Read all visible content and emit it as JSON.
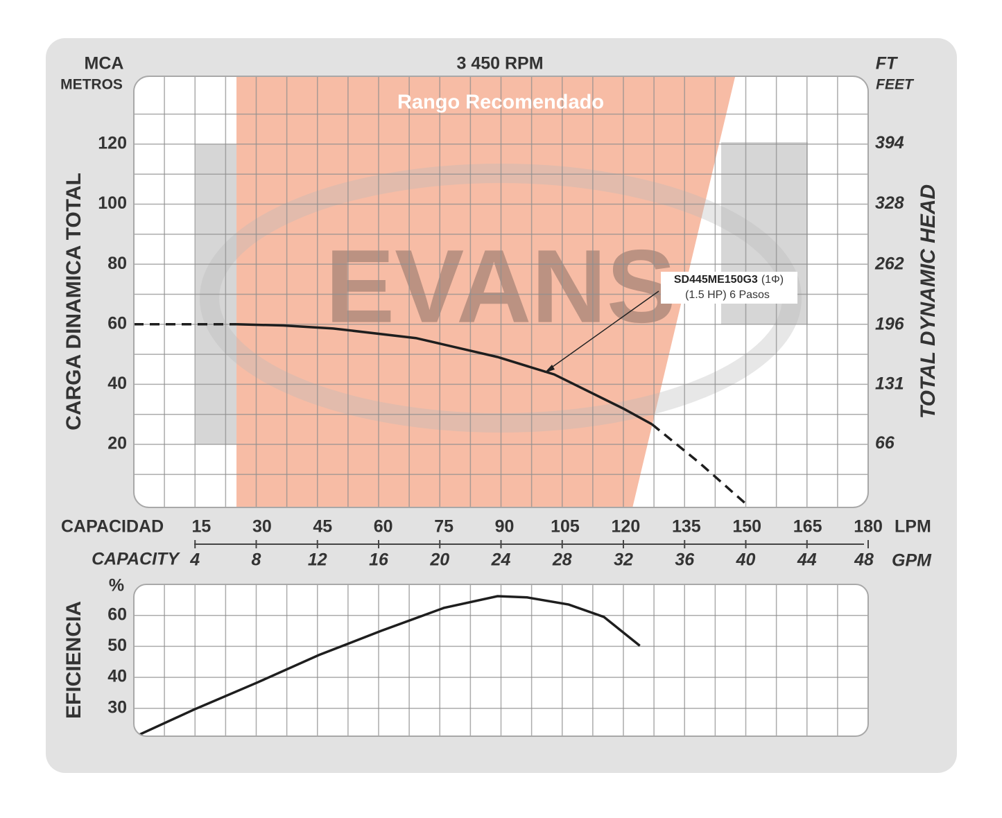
{
  "chart_data": [
    {
      "type": "line",
      "title": "3 450 RPM",
      "y_label_top": "MCA",
      "y_label_sub": "METROS",
      "y_label": "CARGA  DINAMICA  TOTAL",
      "y2_label_top": "FT",
      "y2_label_sub": "FEET",
      "y2_label": "TOTAL  DYNAMIC  HEAD",
      "x_label": "CAPACIDAD",
      "x_unit": "LPM",
      "xlim": [
        0,
        181.7
      ],
      "xticks": [
        15,
        30,
        45,
        60,
        75,
        90,
        105,
        120,
        135,
        150,
        165,
        180
      ],
      "x2_label": "CAPACITY",
      "x2_unit": "GPM",
      "x2lim": [
        0,
        48
      ],
      "x2ticks": [
        4,
        8,
        12,
        16,
        20,
        24,
        28,
        32,
        36,
        40,
        44,
        48
      ],
      "x2grid": [
        2,
        4,
        6,
        8,
        10,
        12,
        14,
        16,
        18,
        20,
        22,
        24,
        26,
        28,
        30,
        32,
        34,
        36,
        38,
        40,
        42,
        44,
        46
      ],
      "ylim": [
        -1,
        142.6
      ],
      "yticks": [
        20,
        40,
        60,
        80,
        100,
        120
      ],
      "ygrid": [
        10,
        20,
        30,
        40,
        50,
        60,
        70,
        80,
        90,
        100,
        110,
        120,
        130
      ],
      "y2lim": [
        -3.3,
        467.8
      ],
      "y2ticks": [
        66,
        131,
        196,
        262,
        328,
        394
      ],
      "recommended_range": {
        "label": "Rango Recomendado",
        "color": "#f6b59b",
        "x": [
          25.4,
          148.8,
          123.4,
          25.4
        ],
        "y": [
          142.6,
          142.6,
          -1,
          -1
        ]
      },
      "watermark": "EVANS",
      "series": [
        {
          "style": "dashed",
          "color": "#1e1e1e",
          "x": [
            0,
            25.4
          ],
          "values": [
            60,
            60
          ]
        },
        {
          "style": "solid",
          "color": "#1e1e1e",
          "x": [
            25.4,
            37,
            49.3,
            69.8,
            90,
            104,
            121.3,
            128.2
          ],
          "values": [
            60,
            59.6,
            58.6,
            55.4,
            49.1,
            43.3,
            31.8,
            26.7
          ]
        },
        {
          "style": "dashed",
          "color": "#1e1e1e",
          "x": [
            128.2,
            140,
            151.6
          ],
          "values": [
            26.7,
            13.8,
            0
          ]
        }
      ],
      "annotation": {
        "model": "SD445ME150G3",
        "phase": "(1Φ)",
        "detail": "(1.5 HP)  6 Pasos"
      }
    },
    {
      "type": "line",
      "y_label": "EFICIENCIA",
      "y_unit": "%",
      "xlim": [
        0,
        181.7
      ],
      "x2lim": [
        0,
        48
      ],
      "x2grid": [
        2,
        4,
        6,
        8,
        10,
        12,
        14,
        16,
        18,
        20,
        22,
        24,
        26,
        28,
        30,
        32,
        34,
        36,
        38,
        40,
        42,
        44,
        46
      ],
      "ylim": [
        21,
        70
      ],
      "yticks": [
        30,
        40,
        50,
        60
      ],
      "series": [
        {
          "style": "solid",
          "color": "#1e1e1e",
          "x": [
            1.2,
            14.9,
            30.5,
            45.8,
            61.2,
            76.7,
            90,
            97.3,
            107.6,
            116.3,
            125.2
          ],
          "values": [
            21.4,
            29.6,
            38.3,
            47.2,
            55,
            62.4,
            66.2,
            65.8,
            63.5,
            59.5,
            50.2
          ]
        }
      ]
    }
  ]
}
